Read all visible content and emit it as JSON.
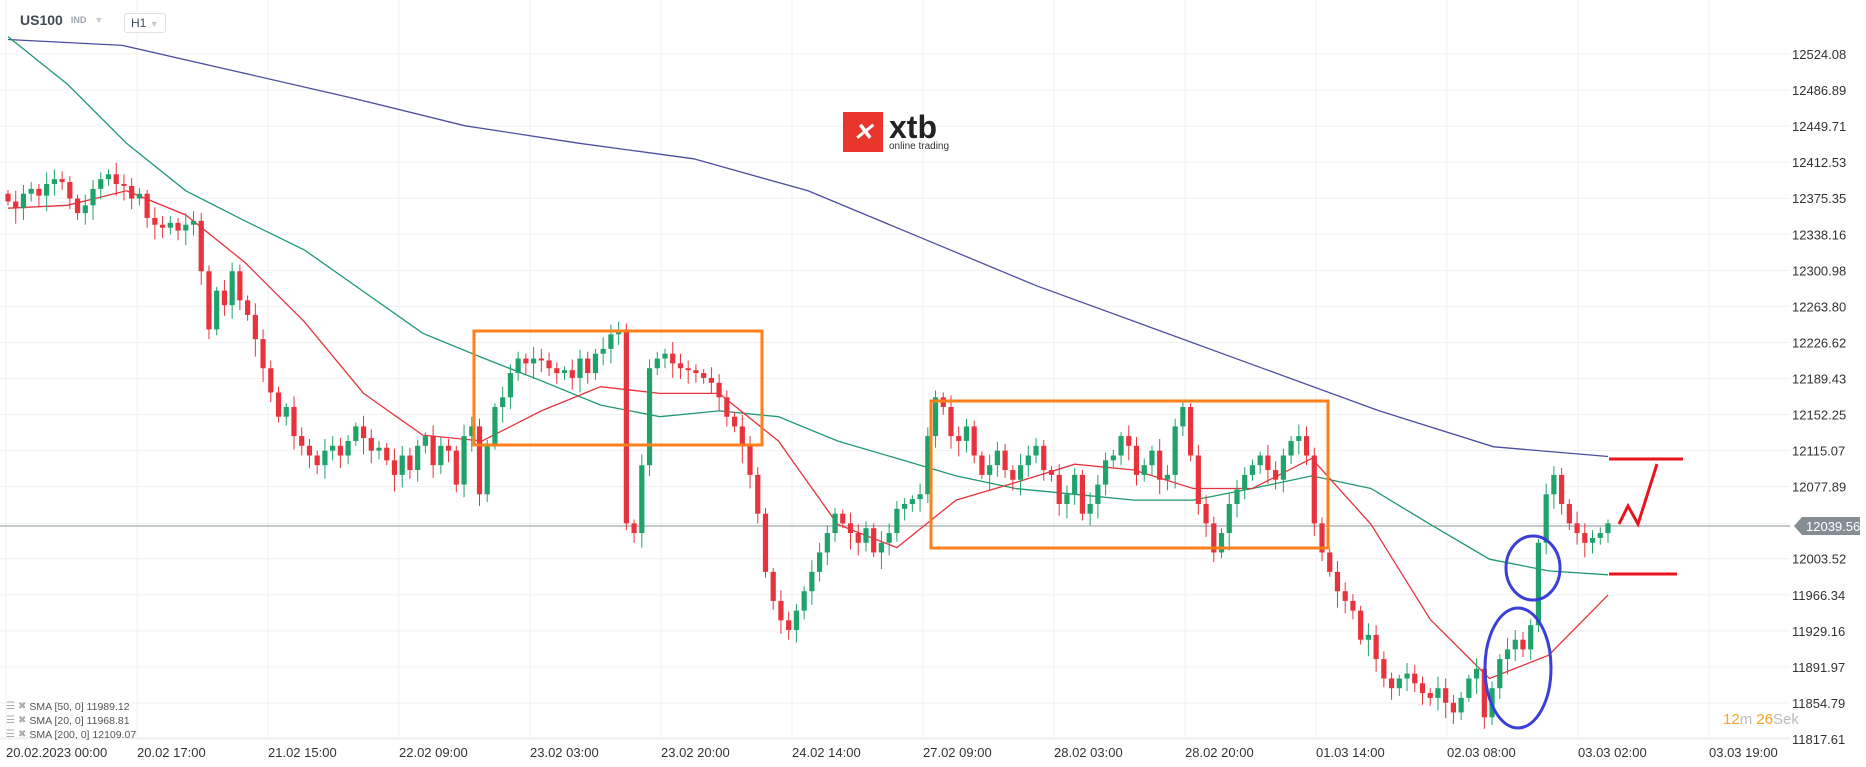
{
  "header": {
    "symbol": "US100",
    "instrument_type": "IND",
    "timeframe": "H1"
  },
  "logo": {
    "text": "xtb",
    "tagline": "online trading"
  },
  "current_price": "12039.56",
  "timer": {
    "minutes": "12",
    "min_unit": "m",
    "seconds": "26",
    "sec_unit": "Sek"
  },
  "legend": [
    {
      "label": "SMA [50, 0] 11989.12"
    },
    {
      "label": "SMA [20, 0] 11968.81"
    },
    {
      "label": "SMA [200, 0] 12109.07"
    }
  ],
  "colors": {
    "bull": "#1fa36a",
    "bear": "#e8323c",
    "sma50": "#1f9a6a",
    "sma20": "#e8323c",
    "sma200": "#4b4ea0",
    "boxes": "#ff7f1a",
    "circles": "#3b3fd8",
    "annotation": "#e8141c"
  },
  "chart_data": {
    "type": "candlestick",
    "ylim": [
      11800,
      12550
    ],
    "y_ticks": [
      "12524.08",
      "12486.89",
      "12449.71",
      "12412.53",
      "12375.35",
      "12338.16",
      "12300.98",
      "12263.80",
      "12226.62",
      "12189.43",
      "12152.25",
      "12115.07",
      "12077.89",
      "12039.70",
      "12003.52",
      "11966.34",
      "11929.16",
      "11891.97",
      "11854.79",
      "11817.61"
    ],
    "x_ticks": [
      "20.02.2023  00:00",
      "20.02  17:00",
      "21.02  15:00",
      "22.02  09:00",
      "23.02  03:00",
      "23.02  20:00",
      "24.02  14:00",
      "27.02  09:00",
      "28.02  03:00",
      "28.02  20:00",
      "01.03  14:00",
      "02.03  08:00",
      "03.03  02:00",
      "03.03  19:00"
    ],
    "closes": [
      12372,
      12365,
      12380,
      12385,
      12378,
      12390,
      12395,
      12392,
      12375,
      12360,
      12368,
      12385,
      12395,
      12400,
      12390,
      12388,
      12375,
      12380,
      12355,
      12348,
      12345,
      12350,
      12342,
      12348,
      12352,
      12300,
      12240,
      12280,
      12265,
      12300,
      12270,
      12255,
      12230,
      12200,
      12175,
      12150,
      12160,
      12130,
      12120,
      12110,
      12100,
      12115,
      12120,
      12110,
      12125,
      12140,
      12128,
      12115,
      12118,
      12105,
      12090,
      12110,
      12095,
      12120,
      12130,
      12100,
      12120,
      12115,
      12080,
      12130,
      12140,
      12070,
      12120,
      12160,
      12170,
      12195,
      12210,
      12205,
      12210,
      12208,
      12200,
      12195,
      12198,
      12190,
      12210,
      12195,
      12215,
      12220,
      12235,
      12240,
      12040,
      12030,
      12100,
      12200,
      12210,
      12215,
      12205,
      12200,
      12198,
      12195,
      12190,
      12185,
      12170,
      12150,
      12140,
      12120,
      12090,
      12050,
      11990,
      11960,
      11940,
      11930,
      11950,
      11970,
      11990,
      12010,
      12030,
      12050,
      12040,
      12030,
      12020,
      12035,
      12010,
      12020,
      12030,
      12055,
      12060,
      12065,
      12070,
      12130,
      12170,
      12160,
      12130,
      12125,
      12140,
      12110,
      12090,
      12100,
      12115,
      12095,
      12085,
      12100,
      12110,
      12120,
      12095,
      12090,
      12060,
      12070,
      12090,
      12050,
      12060,
      12080,
      12105,
      12110,
      12130,
      12120,
      12090,
      12100,
      12115,
      12085,
      12090,
      12140,
      12160,
      12110,
      12060,
      12040,
      12010,
      12030,
      12060,
      12075,
      12090,
      12100,
      12110,
      12095,
      12085,
      12110,
      12125,
      12130,
      12110,
      12040,
      12010,
      11990,
      11970,
      11960,
      11950,
      11920,
      11925,
      11900,
      11880,
      11870,
      11880,
      11885,
      11875,
      11865,
      11860,
      11870,
      11855,
      11845,
      11860,
      11880,
      11890,
      11840,
      11870,
      11900,
      11910,
      11920,
      11910,
      11935,
      12020,
      12070,
      12090,
      12060,
      12040,
      12030,
      12020,
      12025,
      12030,
      12040
    ],
    "first_open": 12380,
    "series": [
      {
        "name": "SMA [200, 0]",
        "values": [
          12539,
          12533,
          12506,
          12479,
          12450,
          12432,
          12416,
          12383,
          12334,
          12285,
          12242,
          12199,
          12156,
          12119,
          12109
        ]
      },
      {
        "name": "SMA [50, 0]",
        "values": [
          12542,
          12493,
          12432,
          12383,
          12352,
          12322,
          12279,
          12236,
          12211,
          12187,
          12162,
          12150,
          12156,
          12150,
          12125,
          12107,
          12089,
          12076,
          12070,
          12064,
          12064,
          12076,
          12089,
          12076,
          12039,
          12003,
          11991,
          11987
        ]
      },
      {
        "name": "SMA [20, 0]",
        "values": [
          12365,
          12368,
          12383,
          12358,
          12309,
          12248,
          12174,
          12131,
          12125,
          12156,
          12181,
          12174,
          12174,
          12125,
          12039,
          12015,
          12064,
          12082,
          12101,
          12095,
          12076,
          12076,
          12107,
          12039,
          11941,
          11880,
          11904,
          11966
        ]
      }
    ]
  }
}
